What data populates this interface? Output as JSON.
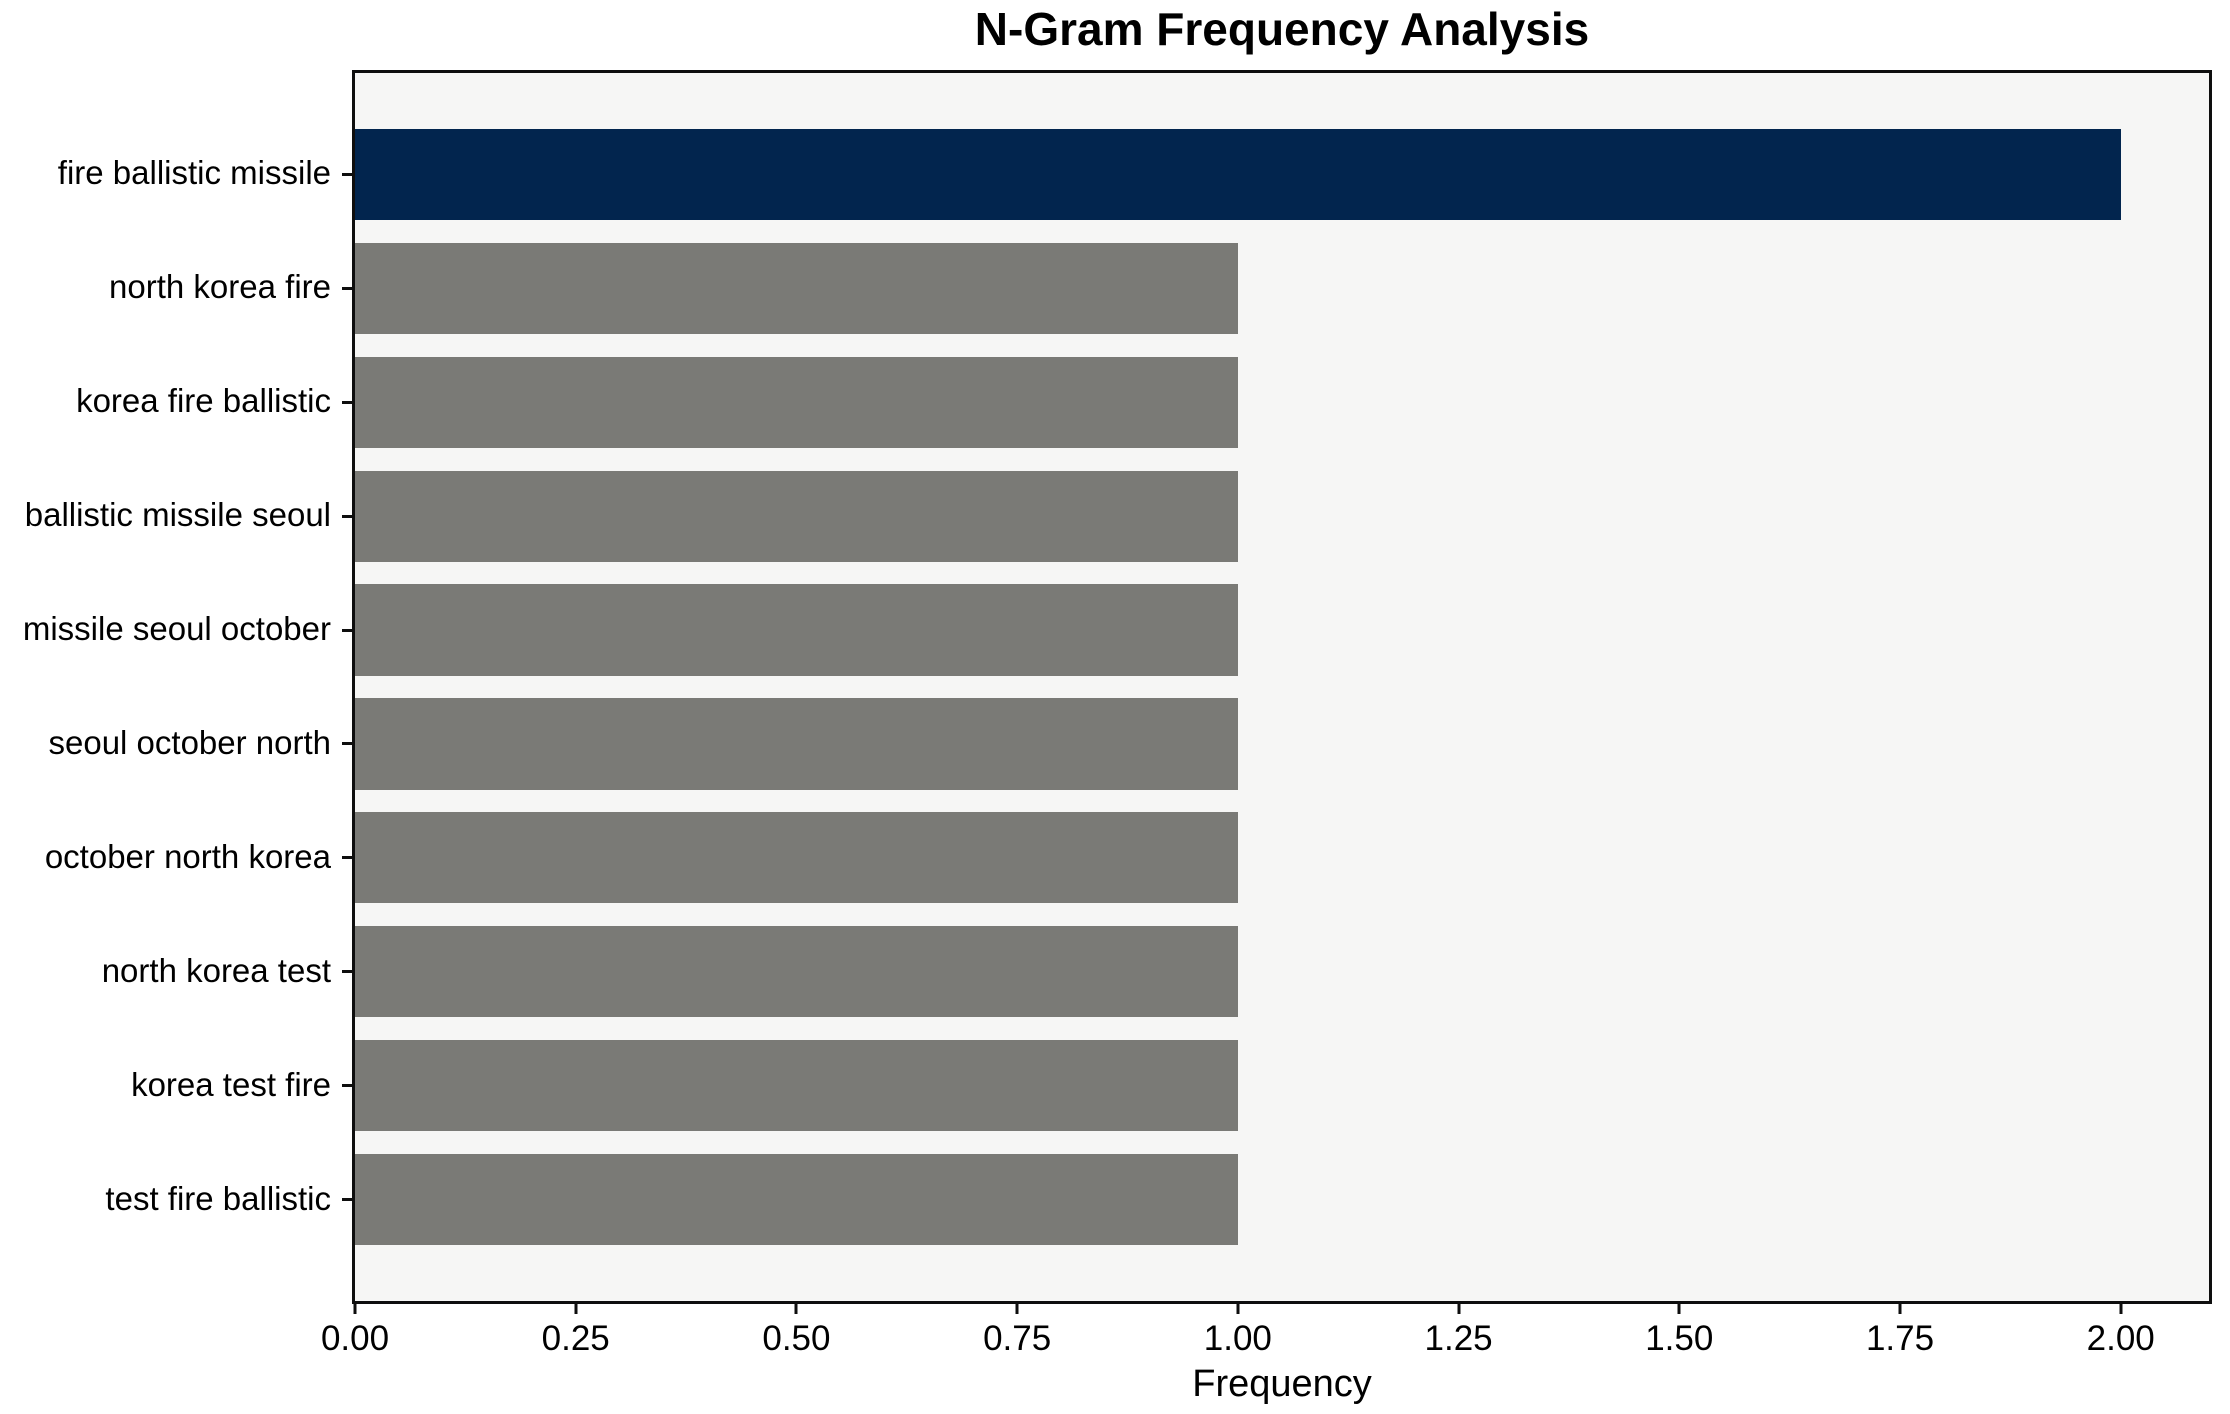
{
  "chart_data": {
    "type": "bar",
    "orientation": "horizontal",
    "title": "N-Gram Frequency Analysis",
    "xlabel": "Frequency",
    "ylabel": "",
    "categories": [
      "fire ballistic missile",
      "north korea fire",
      "korea fire ballistic",
      "ballistic missile seoul",
      "missile seoul october",
      "seoul october north",
      "october north korea",
      "north korea test",
      "korea test fire",
      "test fire ballistic"
    ],
    "values": [
      2,
      1,
      1,
      1,
      1,
      1,
      1,
      1,
      1,
      1
    ],
    "bar_colors": [
      "#02254e",
      "#7a7a76",
      "#7a7a76",
      "#7a7a76",
      "#7a7a76",
      "#7a7a76",
      "#7a7a76",
      "#7a7a76",
      "#7a7a76",
      "#7a7a76"
    ],
    "highlight_color": "#02254e",
    "default_bar_color": "#7a7a76",
    "xlim": [
      0,
      2.1
    ],
    "xtick_values": [
      0,
      0.25,
      0.5,
      0.75,
      1.0,
      1.25,
      1.5,
      1.75,
      2.0
    ],
    "xtick_labels": [
      "0.00",
      "0.25",
      "0.50",
      "0.75",
      "1.00",
      "1.25",
      "1.50",
      "1.75",
      "2.00"
    ],
    "grid": false,
    "plot_bg": "#f6f6f5",
    "figure_bg": "#ffffff",
    "spine_color": "#0e0e0e",
    "text_color": "#000000"
  }
}
